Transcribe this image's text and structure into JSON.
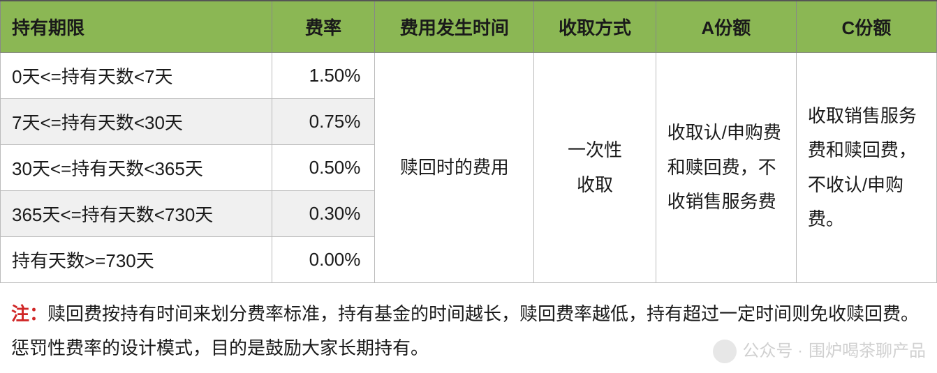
{
  "table": {
    "headers": {
      "period": "持有期限",
      "rate": "费率",
      "fee_time": "费用发生时间",
      "method": "收取方式",
      "share_a": "A份额",
      "share_c": "C份额"
    },
    "rows": [
      {
        "period": "0天<=持有天数<7天",
        "rate": "1.50%"
      },
      {
        "period": "7天<=持有天数<30天",
        "rate": "0.75%"
      },
      {
        "period": "30天<=持有天数<365天",
        "rate": "0.50%"
      },
      {
        "period": "365天<=持有天数<730天",
        "rate": "0.30%"
      },
      {
        "period": "持有天数>=730天",
        "rate": "0.00%"
      }
    ],
    "merged": {
      "fee_time": "赎回时的费用",
      "method": "一次性\n收取",
      "share_a": "收取认/申购费和赎回费，不收销售服务费",
      "share_c": "收取销售服务费和赎回费，不收认/申购费。"
    }
  },
  "note": {
    "label": "注：",
    "text": "赎回费按持有时间来划分费率标准，持有基金的时间越长，赎回费率越低，持有超过一定时间则免收赎回费。惩罚性费率的设计模式，目的是鼓励大家长期持有。"
  },
  "watermark": {
    "prefix": "公众号 · ",
    "name": "围炉喝茶聊产品"
  },
  "style": {
    "header_bg": "#8bb754",
    "alt_row_bg": "#f0f0f0",
    "border_color": "#bbbbbb",
    "note_label_color": "#d02626",
    "font_size_pt": 20
  }
}
